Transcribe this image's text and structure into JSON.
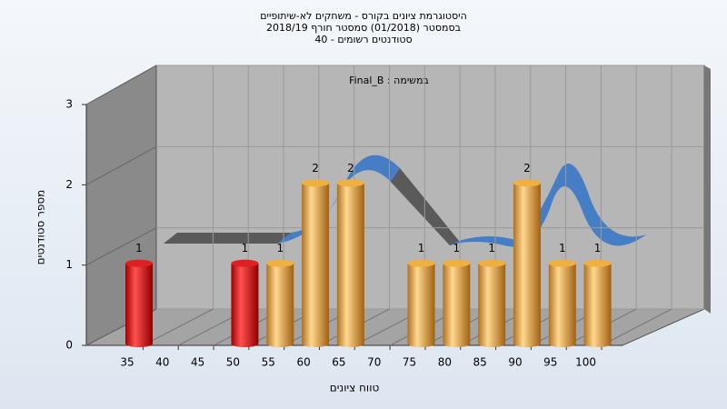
{
  "chart_data": {
    "type": "bar",
    "title": [
      "היסטוגרמת ציונים בקורס - משחקים לא-שיתופיים",
      "בסמסטר (01/2018) סמסטר חורף 2018/19",
      "סטודנטים רשומים - 40"
    ],
    "annotation": "Final_B : במשימה",
    "x_label": "טווח ציונים",
    "y_label": "מספר סטודנטים",
    "categories": [
      35,
      40,
      45,
      50,
      55,
      60,
      65,
      70,
      75,
      80,
      85,
      90,
      95,
      100
    ],
    "values": [
      1,
      0,
      0,
      1,
      1,
      2,
      2,
      0,
      1,
      1,
      1,
      2,
      1,
      1
    ],
    "colors": [
      "red",
      "gold",
      "gold",
      "red",
      "gold",
      "gold",
      "gold",
      "gold",
      "gold",
      "gold",
      "gold",
      "gold",
      "gold",
      "gold"
    ],
    "ylim": [
      0,
      3
    ],
    "yticks": [
      0,
      1,
      2,
      3
    ],
    "grid": true
  }
}
